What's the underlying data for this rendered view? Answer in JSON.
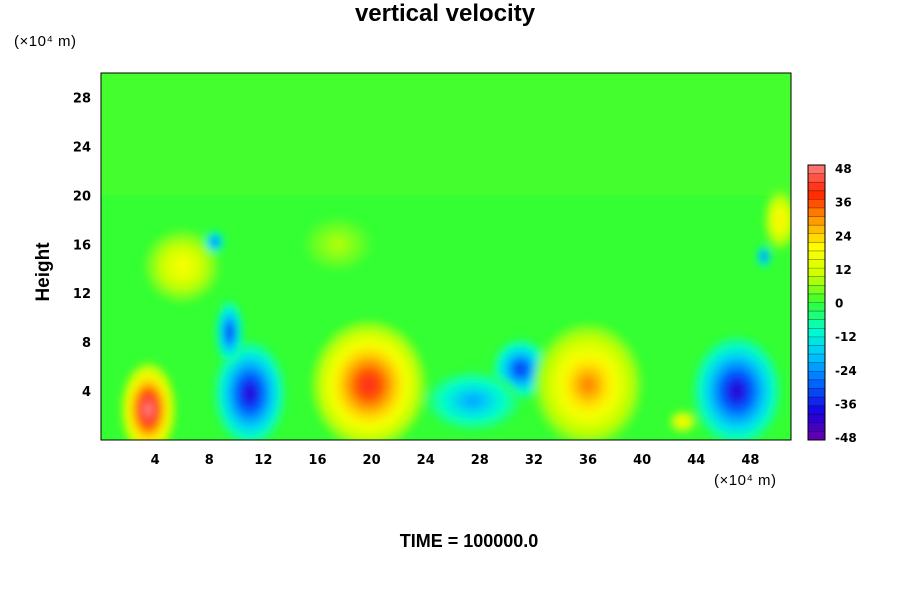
{
  "chart_data": {
    "type": "heatmap",
    "title": "vertical velocity",
    "ylabel": "Height",
    "xlabel": "",
    "x_unit": "(×10⁴ m)",
    "y_unit": "(×10⁴ m)",
    "footer": "TIME = 100000.0",
    "xlim": [
      0,
      51
    ],
    "ylim": [
      0,
      30
    ],
    "x_ticks": [
      4,
      8,
      12,
      16,
      20,
      24,
      28,
      32,
      36,
      40,
      44,
      48
    ],
    "y_ticks": [
      4,
      8,
      12,
      16,
      20,
      24,
      28
    ],
    "colorbar": {
      "range": [
        -48,
        48
      ],
      "ticks": [
        48,
        36,
        24,
        12,
        0,
        -12,
        -24,
        -36,
        -48
      ],
      "colors": [
        "#6a00a8",
        "#1a00e0",
        "#0060ff",
        "#00c0ff",
        "#00ffcc",
        "#33ff33",
        "#ccff00",
        "#ffff00",
        "#ff9900",
        "#ff2200",
        "#ff8080"
      ]
    },
    "features": [
      {
        "x": 3.5,
        "y": 2.5,
        "rx": 2.0,
        "ry": 3.8,
        "value": 50
      },
      {
        "x": 11.0,
        "y": 3.8,
        "rx": 2.6,
        "ry": 4.2,
        "value": -40
      },
      {
        "x": 9.5,
        "y": 8.8,
        "rx": 1.0,
        "ry": 2.6,
        "value": -34
      },
      {
        "x": 19.8,
        "y": 4.5,
        "rx": 4.2,
        "ry": 5.2,
        "value": 40
      },
      {
        "x": 31.0,
        "y": 5.8,
        "rx": 2.0,
        "ry": 2.4,
        "value": -34
      },
      {
        "x": 27.5,
        "y": 3.2,
        "rx": 3.5,
        "ry": 2.4,
        "value": -22
      },
      {
        "x": 36.0,
        "y": 4.5,
        "rx": 4.0,
        "ry": 5.0,
        "value": 30
      },
      {
        "x": 47.0,
        "y": 4.0,
        "rx": 3.2,
        "ry": 4.4,
        "value": -40
      },
      {
        "x": 6.0,
        "y": 14.2,
        "rx": 2.8,
        "ry": 3.0,
        "value": 18
      },
      {
        "x": 8.4,
        "y": 16.2,
        "rx": 0.7,
        "ry": 0.9,
        "value": -32
      },
      {
        "x": 17.5,
        "y": 16.0,
        "rx": 2.5,
        "ry": 2.2,
        "value": 8
      },
      {
        "x": 50.2,
        "y": 18.0,
        "rx": 1.2,
        "ry": 2.5,
        "value": 22
      },
      {
        "x": 49.0,
        "y": 15.0,
        "rx": 0.5,
        "ry": 0.9,
        "value": -34
      },
      {
        "x": 43.0,
        "y": 1.5,
        "rx": 1.0,
        "ry": 0.9,
        "value": 22
      }
    ]
  }
}
